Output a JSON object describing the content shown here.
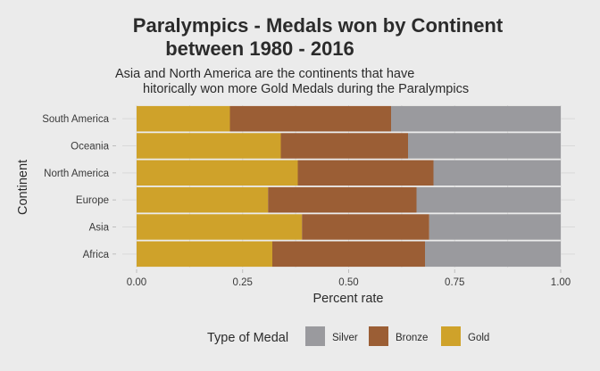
{
  "chart_data": {
    "type": "bar",
    "orientation": "horizontal",
    "stacked": true,
    "title_lines": [
      "Paralympics - Medals won by Continent",
      "between 1980 - 2016"
    ],
    "subtitle_lines": [
      "Asia and North America are the continents that have",
      "hitorically won more Gold Medals during the Paralympics"
    ],
    "xlabel": "Percent rate",
    "ylabel": "Continent",
    "xlim": [
      0,
      1
    ],
    "x_ticks": [
      "0.00",
      "0.25",
      "0.50",
      "0.75",
      "1.00"
    ],
    "x_tick_values": [
      0,
      0.25,
      0.5,
      0.75,
      1
    ],
    "categories": [
      "South America",
      "Oceania",
      "North America",
      "Europe",
      "Asia",
      "Africa"
    ],
    "series": [
      {
        "name": "Gold",
        "color": "#cfa22a",
        "values": [
          0.22,
          0.34,
          0.38,
          0.31,
          0.39,
          0.32
        ]
      },
      {
        "name": "Bronze",
        "color": "#9b5e35",
        "values": [
          0.38,
          0.3,
          0.32,
          0.35,
          0.3,
          0.36
        ]
      },
      {
        "name": "Silver",
        "color": "#9a9a9e",
        "values": [
          0.4,
          0.36,
          0.3,
          0.34,
          0.31,
          0.32
        ]
      }
    ],
    "legend": {
      "title": "Type of Medal",
      "position": "bottom",
      "order": [
        "Silver",
        "Bronze",
        "Gold"
      ]
    },
    "grid": true
  }
}
